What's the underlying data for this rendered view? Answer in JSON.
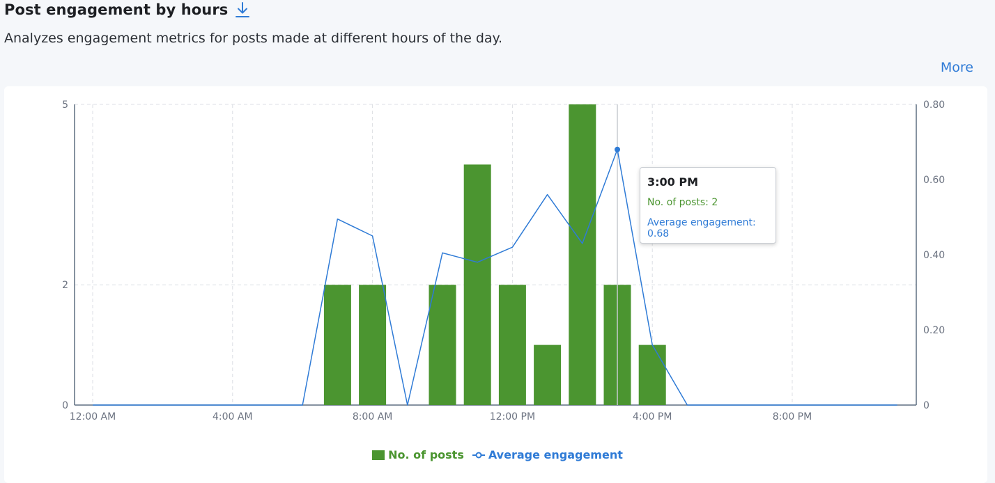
{
  "header": {
    "title": "Post engagement by hours",
    "download_icon": "download-icon",
    "subtitle": "Analyzes engagement metrics for posts made at different hours of the day.",
    "more_label": "More"
  },
  "colors": {
    "bar": "#4b9530",
    "line": "#2f7bd6",
    "link": "#2f7bd6"
  },
  "chart_data": {
    "type": "bar",
    "x": [
      0,
      1,
      2,
      3,
      4,
      5,
      6,
      7,
      8,
      9,
      10,
      11,
      12,
      13,
      14,
      15,
      16,
      17,
      18,
      19,
      20,
      21,
      22,
      23
    ],
    "x_tick_labels": [
      "12:00 AM",
      "4:00 AM",
      "8:00 AM",
      "12:00 PM",
      "4:00 PM",
      "8:00 PM"
    ],
    "x_tick_positions": [
      0,
      4,
      8,
      12,
      16,
      20
    ],
    "series": [
      {
        "name": "No. of posts",
        "type": "bar",
        "axis": "left",
        "values": [
          0,
          0,
          0,
          0,
          0,
          0,
          0,
          2,
          2,
          0,
          2,
          4,
          2,
          1,
          5,
          2,
          1,
          0,
          0,
          0,
          0,
          0,
          0,
          0
        ]
      },
      {
        "name": "Average engagement",
        "type": "line",
        "axis": "right",
        "values": [
          0,
          0,
          0,
          0,
          0,
          0,
          0,
          0.495,
          0.45,
          0,
          0.405,
          0.38,
          0.42,
          0.56,
          0.43,
          0.68,
          0.16,
          0,
          0,
          0,
          0,
          0,
          0,
          0
        ]
      }
    ],
    "y_left": {
      "ticks": [
        0,
        2,
        5
      ],
      "tick_labels": [
        "0",
        "2",
        "5"
      ],
      "lim": [
        0,
        5
      ]
    },
    "y_right": {
      "ticks": [
        0,
        0.2,
        0.4,
        0.6,
        0.8
      ],
      "tick_labels": [
        "0",
        "0.20",
        "0.40",
        "0.60",
        "0.80"
      ],
      "lim": [
        0,
        0.8
      ]
    },
    "grid": true,
    "legend_position": "bottom",
    "tooltip": {
      "hour": 15,
      "title": "3:00 PM",
      "line1": "No. of posts: 2",
      "line2": "Average engagement: 0.68"
    }
  }
}
